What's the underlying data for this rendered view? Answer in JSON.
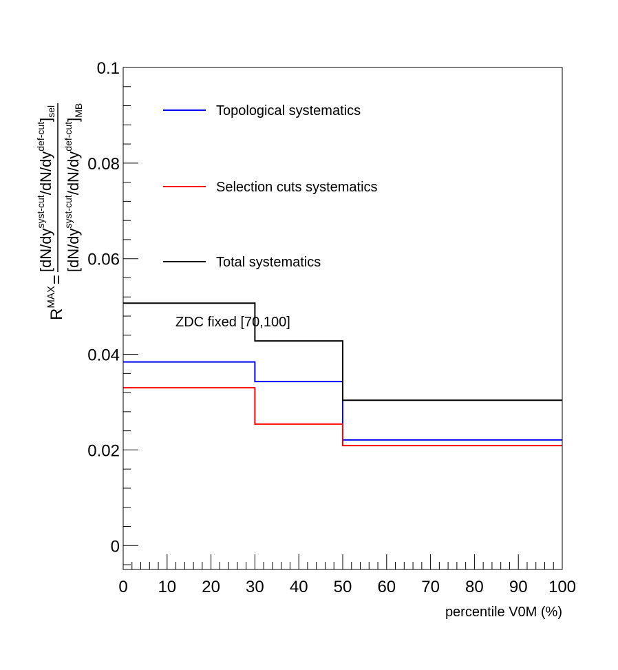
{
  "chart_data": {
    "type": "line",
    "step": true,
    "title": "",
    "xlabel": "percentile V0M (%)",
    "ylabel": {
      "prefix": "R",
      "prefix_sup": "MAX",
      "eq": "=",
      "num_main": "[dN/dy",
      "num_sup1": "syst-cut",
      "num_mid": "/dN/dy",
      "num_sup2": "def-cut",
      "num_close": "]",
      "num_sub": "sel",
      "den_main": "[dN/dy",
      "den_sup1": "syst-cut",
      "den_mid": "/dN/dy",
      "den_sup2": "def-cut",
      "den_close": "]",
      "den_sub": "MB"
    },
    "xlim": [
      0,
      100
    ],
    "ylim": [
      -0.005,
      0.1
    ],
    "x_ticks": [
      0,
      10,
      20,
      30,
      40,
      50,
      60,
      70,
      80,
      90,
      100
    ],
    "x_tick_labels": [
      "0",
      "10",
      "20",
      "30",
      "40",
      "50",
      "60",
      "70",
      "80",
      "90",
      "100"
    ],
    "y_ticks": [
      0,
      0.02,
      0.04,
      0.06,
      0.08,
      0.1
    ],
    "y_tick_labels": [
      "0",
      "0.02",
      "0.04",
      "0.06",
      "0.08",
      "0.1"
    ],
    "bin_edges": [
      0,
      30,
      50,
      100
    ],
    "grid": false,
    "legend_position": "upper-left inside",
    "series": [
      {
        "name": "Topological systematics",
        "color": "#0000ff",
        "values": [
          0.0384,
          0.0343,
          0.0221
        ]
      },
      {
        "name": "Selection cuts systematics",
        "color": "#ff0000",
        "values": [
          0.033,
          0.0254,
          0.0209
        ]
      },
      {
        "name": "Total systematics",
        "color": "#000000",
        "values": [
          0.0507,
          0.0428,
          0.0304
        ]
      }
    ],
    "annotation": "ZDC fixed [70,100]"
  }
}
